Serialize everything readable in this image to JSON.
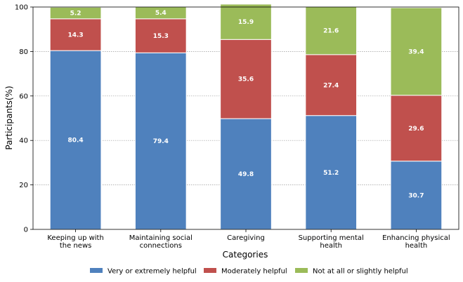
{
  "chart_data": {
    "type": "bar",
    "stacked": true,
    "title": "",
    "xlabel": "Categories",
    "ylabel": "Participants(%)",
    "ylim": [
      0,
      100
    ],
    "yticks": [
      "0",
      "20",
      "40",
      "60",
      "80",
      "100"
    ],
    "grid": "horizontal dotted",
    "legend_position": "bottom",
    "categories": [
      [
        "Keeping up with",
        "the news"
      ],
      [
        "Maintaining social",
        "connections"
      ],
      [
        "Caregiving"
      ],
      [
        "Supporting mental",
        "health"
      ],
      [
        "Enhancing physical",
        "health"
      ]
    ],
    "series": [
      {
        "name": "Very or extremely helpful",
        "color": "#4f81bd",
        "values": [
          80.4,
          79.4,
          49.8,
          51.2,
          30.7
        ],
        "labels": [
          "80.4",
          "79.4",
          "49.8",
          "51.2",
          "30.7"
        ]
      },
      {
        "name": "Moderately helpful",
        "color": "#c0504d",
        "values": [
          14.3,
          15.3,
          35.6,
          27.4,
          29.6
        ],
        "labels": [
          "14.3",
          "15.3",
          "35.6",
          "27.4",
          "29.6"
        ]
      },
      {
        "name": "Not at all or slightly helpful",
        "color": "#9bbb59",
        "values": [
          5.2,
          5.4,
          15.9,
          21.6,
          39.4
        ],
        "labels": [
          "5.2",
          "5.4",
          "15.9",
          "21.6",
          "39.4"
        ]
      }
    ]
  }
}
